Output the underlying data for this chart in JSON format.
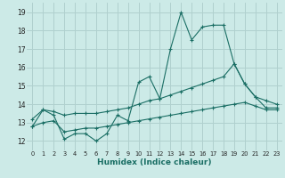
{
  "xlabel": "Humidex (Indice chaleur)",
  "background_color": "#cceae7",
  "grid_color": "#b0d0ce",
  "line_color": "#1a6e64",
  "xlim": [
    -0.5,
    23.5
  ],
  "ylim": [
    11.5,
    19.5
  ],
  "xticks": [
    0,
    1,
    2,
    3,
    4,
    5,
    6,
    7,
    8,
    9,
    10,
    11,
    12,
    13,
    14,
    15,
    16,
    17,
    18,
    19,
    20,
    21,
    22,
    23
  ],
  "yticks": [
    12,
    13,
    14,
    15,
    16,
    17,
    18,
    19
  ],
  "series": [
    {
      "x": [
        0,
        1,
        2,
        3,
        4,
        5,
        6,
        7,
        8,
        9,
        10,
        11,
        12,
        13,
        14,
        15,
        16,
        17,
        18,
        19,
        20,
        21,
        22,
        23
      ],
      "y": [
        12.8,
        13.7,
        13.4,
        12.1,
        12.4,
        12.4,
        12.0,
        12.4,
        13.4,
        13.1,
        15.2,
        15.5,
        14.3,
        17.0,
        19.0,
        17.5,
        18.2,
        18.3,
        18.3,
        16.2,
        15.1,
        14.4,
        13.8,
        13.8
      ]
    },
    {
      "x": [
        0,
        1,
        2,
        3,
        4,
        5,
        6,
        7,
        8,
        9,
        10,
        11,
        12,
        13,
        14,
        15,
        16,
        17,
        18,
        19,
        20,
        21,
        22,
        23
      ],
      "y": [
        13.2,
        13.7,
        13.6,
        13.4,
        13.5,
        13.5,
        13.5,
        13.6,
        13.7,
        13.8,
        14.0,
        14.2,
        14.3,
        14.5,
        14.7,
        14.9,
        15.1,
        15.3,
        15.5,
        16.2,
        15.1,
        14.4,
        14.2,
        14.0
      ]
    },
    {
      "x": [
        0,
        1,
        2,
        3,
        4,
        5,
        6,
        7,
        8,
        9,
        10,
        11,
        12,
        13,
        14,
        15,
        16,
        17,
        18,
        19,
        20,
        21,
        22,
        23
      ],
      "y": [
        12.8,
        13.0,
        13.1,
        12.5,
        12.6,
        12.7,
        12.7,
        12.8,
        12.9,
        13.0,
        13.1,
        13.2,
        13.3,
        13.4,
        13.5,
        13.6,
        13.7,
        13.8,
        13.9,
        14.0,
        14.1,
        13.9,
        13.7,
        13.7
      ]
    }
  ]
}
